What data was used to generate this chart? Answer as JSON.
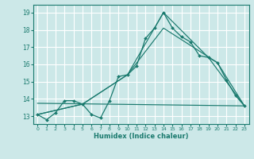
{
  "title": "",
  "xlabel": "Humidex (Indice chaleur)",
  "ylabel": "",
  "background_color": "#cce8e8",
  "grid_color": "#ffffff",
  "line_color": "#1a7a6e",
  "xlim": [
    -0.5,
    23.5
  ],
  "ylim": [
    12.55,
    19.45
  ],
  "yticks": [
    13,
    14,
    15,
    16,
    17,
    18,
    19
  ],
  "xticks": [
    0,
    1,
    2,
    3,
    4,
    5,
    6,
    7,
    8,
    9,
    10,
    11,
    12,
    13,
    14,
    15,
    16,
    17,
    18,
    19,
    20,
    21,
    22,
    23
  ],
  "lines": [
    {
      "x": [
        0,
        1,
        2,
        3,
        4,
        5,
        6,
        7,
        8,
        9,
        10,
        11,
        12,
        13,
        14,
        15,
        16,
        17,
        18,
        19,
        20,
        21,
        22,
        23
      ],
      "y": [
        13.1,
        12.8,
        13.2,
        13.9,
        13.9,
        13.7,
        13.1,
        12.9,
        13.9,
        15.3,
        15.4,
        15.9,
        17.5,
        18.1,
        19.0,
        18.1,
        17.6,
        17.3,
        16.5,
        16.4,
        16.1,
        15.1,
        14.2,
        13.6
      ],
      "marker": true
    },
    {
      "x": [
        0,
        5,
        10,
        14,
        19,
        23
      ],
      "y": [
        13.1,
        13.7,
        15.4,
        19.0,
        16.4,
        13.6
      ],
      "marker": false
    },
    {
      "x": [
        0,
        5,
        10,
        14,
        20,
        23
      ],
      "y": [
        13.1,
        13.7,
        15.4,
        18.1,
        16.1,
        13.6
      ],
      "marker": false
    },
    {
      "x": [
        0,
        23
      ],
      "y": [
        13.75,
        13.6
      ],
      "marker": false
    }
  ]
}
